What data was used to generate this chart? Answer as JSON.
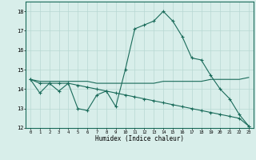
{
  "xlabel": "Humidex (Indice chaleur)",
  "x_values": [
    0,
    1,
    2,
    3,
    4,
    5,
    6,
    7,
    8,
    9,
    10,
    11,
    12,
    13,
    14,
    15,
    16,
    17,
    18,
    19,
    20,
    21,
    22,
    23
  ],
  "line1": [
    14.5,
    13.8,
    14.3,
    13.9,
    14.3,
    13.0,
    12.9,
    13.7,
    13.9,
    13.1,
    15.0,
    17.1,
    17.3,
    17.5,
    18.0,
    17.5,
    16.7,
    15.6,
    15.5,
    14.7,
    14.0,
    13.5,
    12.7,
    12.1
  ],
  "line2": [
    14.5,
    14.3,
    14.3,
    14.3,
    14.3,
    14.2,
    14.1,
    14.0,
    13.9,
    13.8,
    13.7,
    13.6,
    13.5,
    13.4,
    13.3,
    13.2,
    13.1,
    13.0,
    12.9,
    12.8,
    12.7,
    12.6,
    12.5,
    12.1
  ],
  "line3": [
    14.5,
    14.4,
    14.4,
    14.4,
    14.4,
    14.4,
    14.4,
    14.3,
    14.3,
    14.3,
    14.3,
    14.3,
    14.3,
    14.3,
    14.4,
    14.4,
    14.4,
    14.4,
    14.4,
    14.5,
    14.5,
    14.5,
    14.5,
    14.6
  ],
  "line_color": "#1a6b5a",
  "bg_color": "#d8eeea",
  "grid_color": "#b8d8d2",
  "ylim": [
    12,
    18.5
  ],
  "yticks": [
    12,
    13,
    14,
    15,
    16,
    17,
    18
  ],
  "xticks": [
    0,
    1,
    2,
    3,
    4,
    5,
    6,
    7,
    8,
    9,
    10,
    11,
    12,
    13,
    14,
    15,
    16,
    17,
    18,
    19,
    20,
    21,
    22,
    23
  ]
}
